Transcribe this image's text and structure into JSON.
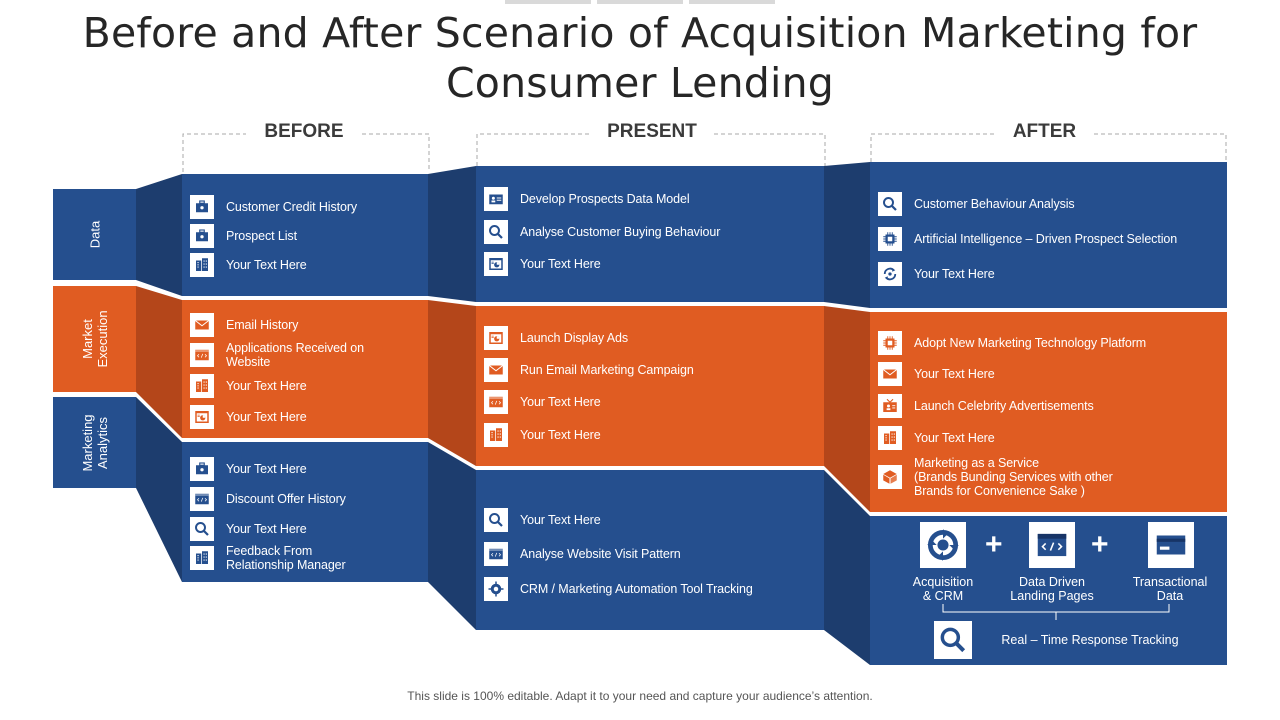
{
  "title": {
    "line1": "Before and After Scenario of Acquisition Marketing for",
    "line2": "Consumer Lending"
  },
  "columns": {
    "before": "BEFORE",
    "present": "PRESENT",
    "after": "AFTER"
  },
  "rows": {
    "data": "Data",
    "market_execution_1": "Market",
    "market_execution_2": "Execution",
    "marketing_analytics_1": "Marketing",
    "marketing_analytics_2": "Analytics"
  },
  "colors": {
    "blue": "#254f8e",
    "orange": "#e05c22",
    "dark_blue": "#1d3d6e",
    "dark_orange": "#b4461a"
  },
  "before": {
    "data": [
      {
        "icon": "briefcase-icon",
        "text": "Customer Credit History"
      },
      {
        "icon": "briefcase-icon",
        "text": "Prospect List"
      },
      {
        "icon": "building-icon",
        "text": "Your Text Here"
      }
    ],
    "market": [
      {
        "icon": "mail-icon",
        "text": "Email History"
      },
      {
        "icon": "code-icon",
        "text": "Applications Received on\nWebsite"
      },
      {
        "icon": "building-icon",
        "text": "Your Text Here"
      },
      {
        "icon": "browser-chart-icon",
        "text": "Your Text Here"
      }
    ],
    "analytics": [
      {
        "icon": "briefcase-icon",
        "text": "Your Text Here"
      },
      {
        "icon": "code-icon",
        "text": "Discount Offer History"
      },
      {
        "icon": "magnifier-icon",
        "text": "Your Text Here"
      },
      {
        "icon": "building-icon",
        "text": "Feedback From\nRelationship Manager"
      }
    ]
  },
  "present": {
    "data": [
      {
        "icon": "id-card-icon",
        "text": "Develop Prospects Data Model"
      },
      {
        "icon": "magnifier-icon",
        "text": "Analyse Customer Buying Behaviour"
      },
      {
        "icon": "browser-chart-icon",
        "text": "Your Text Here"
      }
    ],
    "market": [
      {
        "icon": "browser-chart-icon",
        "text": "Launch Display Ads"
      },
      {
        "icon": "mail-icon",
        "text": "Run Email Marketing Campaign"
      },
      {
        "icon": "code-icon",
        "text": "Your Text Here"
      },
      {
        "icon": "building-icon",
        "text": "Your Text Here"
      }
    ],
    "analytics": [
      {
        "icon": "magnifier-icon",
        "text": "Your Text Here"
      },
      {
        "icon": "code-icon",
        "text": "Analyse Website Visit Pattern"
      },
      {
        "icon": "gear-icon",
        "text": "CRM / Marketing Automation Tool Tracking"
      }
    ]
  },
  "after": {
    "data": [
      {
        "icon": "magnifier-icon",
        "text": "Customer Behaviour Analysis"
      },
      {
        "icon": "chip-icon",
        "text": "Artificial Intelligence – Driven Prospect Selection"
      },
      {
        "icon": "cycle-icon",
        "text": "Your Text Here"
      }
    ],
    "market": [
      {
        "icon": "chip-icon",
        "text": "Adopt New Marketing Technology Platform"
      },
      {
        "icon": "mail-icon",
        "text": "Your Text Here"
      },
      {
        "icon": "tv-icon",
        "text": "Launch Celebrity Advertisements"
      },
      {
        "icon": "building-icon",
        "text": "Your Text Here"
      },
      {
        "icon": "box-icon",
        "text": "Marketing as a Service\n(Brands Bunding Services with other\nBrands for Convenience Sake )"
      }
    ],
    "analytics": {
      "acquisition": "Acquisition\n& CRM",
      "landing": "Data Driven\nLanding Pages",
      "transactional": "Transactional\nData",
      "plus1": "+",
      "plus2": "+",
      "tracking": "Real – Time Response Tracking"
    }
  },
  "footer": "This slide is 100% editable. Adapt it to your need and capture your audience’s attention."
}
